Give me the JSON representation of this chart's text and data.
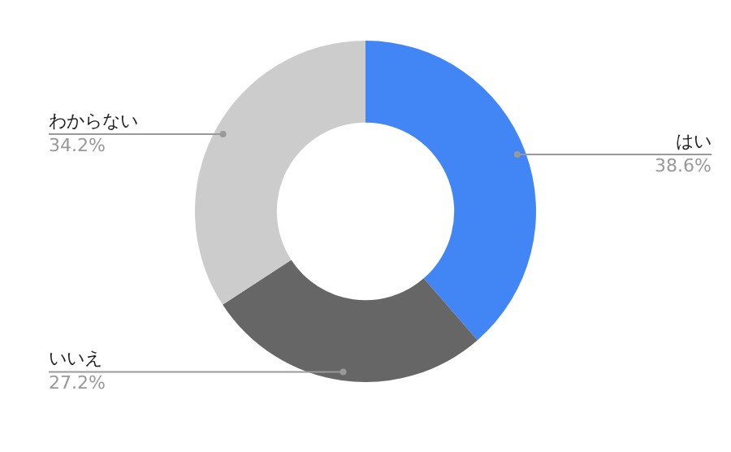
{
  "chart_data": {
    "type": "donut",
    "categories": [
      "はい",
      "いいえ",
      "わからない"
    ],
    "values": [
      38.6,
      27.2,
      34.2
    ],
    "colors": [
      "#4285f4",
      "#666666",
      "#cccccc"
    ],
    "value_labels": [
      "38.6%",
      "27.2%",
      "34.2%"
    ],
    "legend": false
  }
}
